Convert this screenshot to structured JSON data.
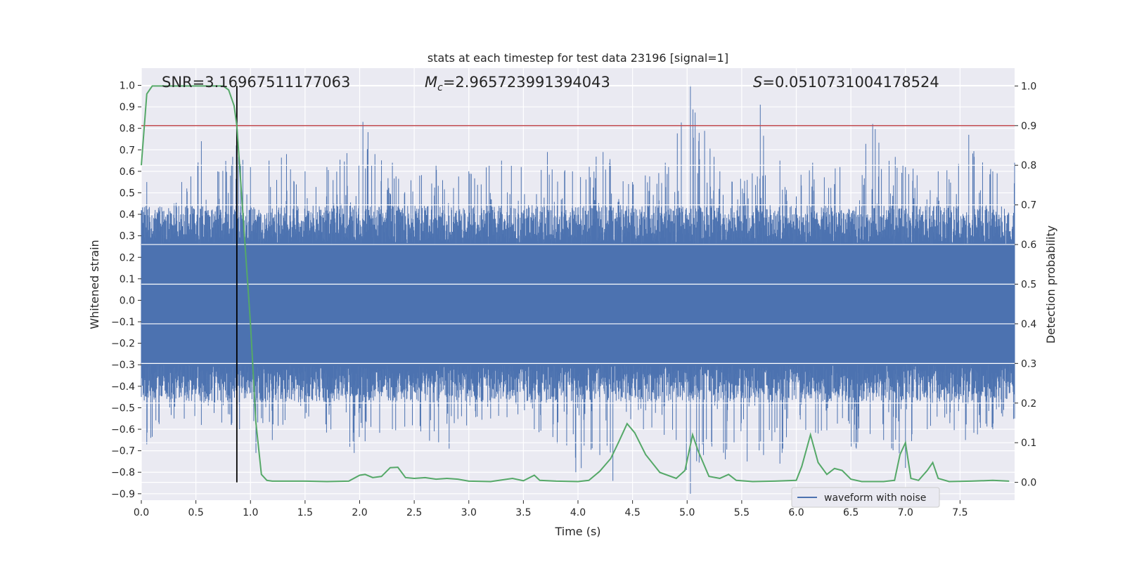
{
  "chart_data": {
    "type": "line",
    "title": "stats at each timestep for test data 23196 [signal=1]",
    "xlabel": "Time (s)",
    "ylabel": "Whitened strain",
    "y2label": "Detection probability",
    "xlim": [
      0.0,
      8.0
    ],
    "ylim": [
      -0.93,
      1.08
    ],
    "y2lim": [
      -0.045,
      1.045
    ],
    "xticks": [
      "0.0",
      "0.5",
      "1.0",
      "1.5",
      "2.0",
      "2.5",
      "3.0",
      "3.5",
      "4.0",
      "4.5",
      "5.0",
      "5.5",
      "6.0",
      "6.5",
      "7.0",
      "7.5"
    ],
    "xtick_values": [
      0.0,
      0.5,
      1.0,
      1.5,
      2.0,
      2.5,
      3.0,
      3.5,
      4.0,
      4.5,
      5.0,
      5.5,
      6.0,
      6.5,
      7.0,
      7.5
    ],
    "yticks": [
      "1.0",
      "0.9",
      "0.8",
      "0.7",
      "0.6",
      "0.5",
      "0.4",
      "0.3",
      "0.2",
      "0.1",
      "0.0",
      "−0.1",
      "−0.2",
      "−0.3",
      "−0.4",
      "−0.5",
      "−0.6",
      "−0.7",
      "−0.8",
      "−0.9"
    ],
    "ytick_values": [
      1.0,
      0.9,
      0.8,
      0.7,
      0.6,
      0.5,
      0.4,
      0.3,
      0.2,
      0.1,
      0.0,
      -0.1,
      -0.2,
      -0.3,
      -0.4,
      -0.5,
      -0.6,
      -0.7,
      -0.8,
      -0.9
    ],
    "y2ticks": [
      "1.0",
      "0.9",
      "0.8",
      "0.7",
      "0.6",
      "0.5",
      "0.4",
      "0.3",
      "0.2",
      "0.1",
      "0.0"
    ],
    "y2tick_values": [
      1.0,
      0.9,
      0.8,
      0.7,
      0.6,
      0.5,
      0.4,
      0.3,
      0.2,
      0.1,
      0.0
    ],
    "annotations": {
      "snr": "SNR=3.16967511177063",
      "mc_symbol": "M",
      "mc_sub": "c",
      "mc_value": "=2.965723991394043",
      "s_symbol": "S",
      "s_value": "=0.0510731004178524"
    },
    "threshold": 0.9,
    "detection_time": 0.875,
    "grid": true,
    "legend_position": "lower-right",
    "series": [
      {
        "name": "waveform with noise",
        "axis": "left",
        "color": "#4c72b0",
        "envelope_upper": [
          [
            0.0,
            0.42
          ],
          [
            0.05,
            0.55
          ],
          [
            0.15,
            0.4
          ],
          [
            0.3,
            0.45
          ],
          [
            0.37,
            0.55
          ],
          [
            0.55,
            0.74
          ],
          [
            0.7,
            0.6
          ],
          [
            0.87,
            0.72
          ],
          [
            1.0,
            0.62
          ],
          [
            1.17,
            0.65
          ],
          [
            1.33,
            0.68
          ],
          [
            1.5,
            0.6
          ],
          [
            1.7,
            0.62
          ],
          [
            2.03,
            0.83
          ],
          [
            2.3,
            0.64
          ],
          [
            2.55,
            0.58
          ],
          [
            2.7,
            0.63
          ],
          [
            3.0,
            0.6
          ],
          [
            3.3,
            0.65
          ],
          [
            3.48,
            0.62
          ],
          [
            3.72,
            0.69
          ],
          [
            3.95,
            0.6
          ],
          [
            4.23,
            0.69
          ],
          [
            4.5,
            0.55
          ],
          [
            4.8,
            0.64
          ],
          [
            5.03,
            1.0
          ],
          [
            5.3,
            0.6
          ],
          [
            5.55,
            0.56
          ],
          [
            5.67,
            0.91
          ],
          [
            5.85,
            0.65
          ],
          [
            6.15,
            0.64
          ],
          [
            6.4,
            0.62
          ],
          [
            6.7,
            0.82
          ],
          [
            7.0,
            0.62
          ],
          [
            7.3,
            0.6
          ],
          [
            7.58,
            0.77
          ],
          [
            7.8,
            0.6
          ],
          [
            8.0,
            0.64
          ]
        ],
        "envelope_lower": [
          [
            0.0,
            -0.45
          ],
          [
            0.05,
            -0.67
          ],
          [
            0.3,
            -0.55
          ],
          [
            0.55,
            -0.58
          ],
          [
            0.9,
            -0.6
          ],
          [
            1.05,
            -0.71
          ],
          [
            1.2,
            -0.65
          ],
          [
            1.5,
            -0.55
          ],
          [
            1.95,
            -0.71
          ],
          [
            2.3,
            -0.6
          ],
          [
            2.82,
            -0.69
          ],
          [
            3.2,
            -0.55
          ],
          [
            3.6,
            -0.6
          ],
          [
            3.98,
            -0.8
          ],
          [
            4.2,
            -0.72
          ],
          [
            4.32,
            -0.84
          ],
          [
            4.6,
            -0.6
          ],
          [
            4.9,
            -0.65
          ],
          [
            5.03,
            -0.9
          ],
          [
            5.15,
            -0.72
          ],
          [
            5.35,
            -0.74
          ],
          [
            5.55,
            -0.75
          ],
          [
            5.7,
            -0.72
          ],
          [
            5.85,
            -0.76
          ],
          [
            6.2,
            -0.62
          ],
          [
            6.55,
            -0.69
          ],
          [
            6.8,
            -0.65
          ],
          [
            7.0,
            -0.78
          ],
          [
            7.2,
            -0.6
          ],
          [
            7.55,
            -0.65
          ],
          [
            7.8,
            -0.6
          ],
          [
            8.0,
            -0.55
          ]
        ]
      },
      {
        "name": "",
        "axis": "right",
        "color": "#55a868",
        "points": [
          [
            0.0,
            0.8
          ],
          [
            0.05,
            0.98
          ],
          [
            0.1,
            1.0
          ],
          [
            0.2,
            1.0
          ],
          [
            0.5,
            1.0
          ],
          [
            0.75,
            1.0
          ],
          [
            0.8,
            0.99
          ],
          [
            0.85,
            0.95
          ],
          [
            0.875,
            0.9
          ],
          [
            0.9,
            0.8
          ],
          [
            0.95,
            0.6
          ],
          [
            1.0,
            0.4
          ],
          [
            1.05,
            0.15
          ],
          [
            1.1,
            0.02
          ],
          [
            1.15,
            0.005
          ],
          [
            1.2,
            0.003
          ],
          [
            1.5,
            0.003
          ],
          [
            1.7,
            0.002
          ],
          [
            1.9,
            0.003
          ],
          [
            2.0,
            0.018
          ],
          [
            2.05,
            0.02
          ],
          [
            2.12,
            0.012
          ],
          [
            2.2,
            0.015
          ],
          [
            2.28,
            0.037
          ],
          [
            2.35,
            0.038
          ],
          [
            2.42,
            0.012
          ],
          [
            2.5,
            0.01
          ],
          [
            2.6,
            0.012
          ],
          [
            2.7,
            0.008
          ],
          [
            2.8,
            0.01
          ],
          [
            2.9,
            0.008
          ],
          [
            3.0,
            0.003
          ],
          [
            3.2,
            0.002
          ],
          [
            3.4,
            0.01
          ],
          [
            3.5,
            0.004
          ],
          [
            3.6,
            0.018
          ],
          [
            3.65,
            0.005
          ],
          [
            3.8,
            0.003
          ],
          [
            4.0,
            0.002
          ],
          [
            4.1,
            0.005
          ],
          [
            4.2,
            0.028
          ],
          [
            4.3,
            0.06
          ],
          [
            4.37,
            0.1
          ],
          [
            4.45,
            0.148
          ],
          [
            4.52,
            0.125
          ],
          [
            4.62,
            0.07
          ],
          [
            4.75,
            0.025
          ],
          [
            4.9,
            0.01
          ],
          [
            4.98,
            0.03
          ],
          [
            5.05,
            0.12
          ],
          [
            5.1,
            0.08
          ],
          [
            5.2,
            0.015
          ],
          [
            5.3,
            0.01
          ],
          [
            5.38,
            0.02
          ],
          [
            5.45,
            0.005
          ],
          [
            5.6,
            0.002
          ],
          [
            5.8,
            0.003
          ],
          [
            6.0,
            0.005
          ],
          [
            6.05,
            0.04
          ],
          [
            6.13,
            0.12
          ],
          [
            6.2,
            0.05
          ],
          [
            6.28,
            0.02
          ],
          [
            6.35,
            0.035
          ],
          [
            6.42,
            0.03
          ],
          [
            6.5,
            0.008
          ],
          [
            6.6,
            0.002
          ],
          [
            6.8,
            0.002
          ],
          [
            6.9,
            0.005
          ],
          [
            6.95,
            0.07
          ],
          [
            7.0,
            0.1
          ],
          [
            7.05,
            0.01
          ],
          [
            7.12,
            0.005
          ],
          [
            7.2,
            0.03
          ],
          [
            7.25,
            0.05
          ],
          [
            7.3,
            0.01
          ],
          [
            7.4,
            0.002
          ],
          [
            7.6,
            0.003
          ],
          [
            7.8,
            0.005
          ],
          [
            7.95,
            0.003
          ]
        ]
      }
    ]
  }
}
